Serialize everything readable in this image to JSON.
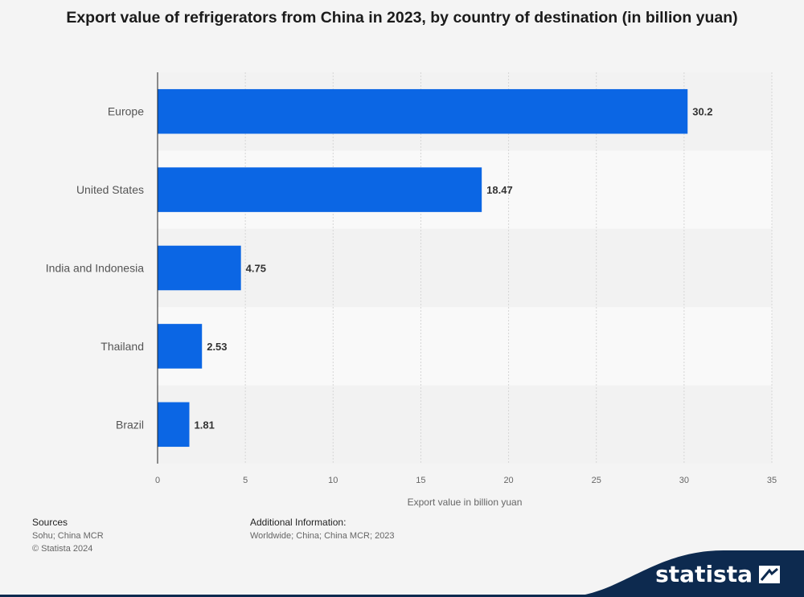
{
  "title": "Export value of refrigerators from China in 2023, by country of destination (in billion yuan)",
  "chart_data": {
    "type": "bar",
    "orientation": "horizontal",
    "categories": [
      "Europe",
      "United States",
      "India and Indonesia",
      "Thailand",
      "Brazil"
    ],
    "values": [
      30.2,
      18.47,
      4.75,
      2.53,
      1.81
    ],
    "value_labels": [
      "30.2",
      "18.47",
      "4.75",
      "2.53",
      "1.81"
    ],
    "xlabel": "Export value in billion yuan",
    "ylabel": "",
    "xlim": [
      0,
      35
    ],
    "xticks": [
      0,
      5,
      10,
      15,
      20,
      25,
      30,
      35
    ],
    "grid": true,
    "colors": {
      "bar": "#0b66e4"
    }
  },
  "footer": {
    "sources_label": "Sources",
    "sources_text": "Sohu; China MCR",
    "copyright": "© Statista 2024",
    "additional_label": "Additional Information:",
    "additional_text": "Worldwide; China; China MCR; 2023"
  },
  "brand": {
    "name": "statista"
  }
}
